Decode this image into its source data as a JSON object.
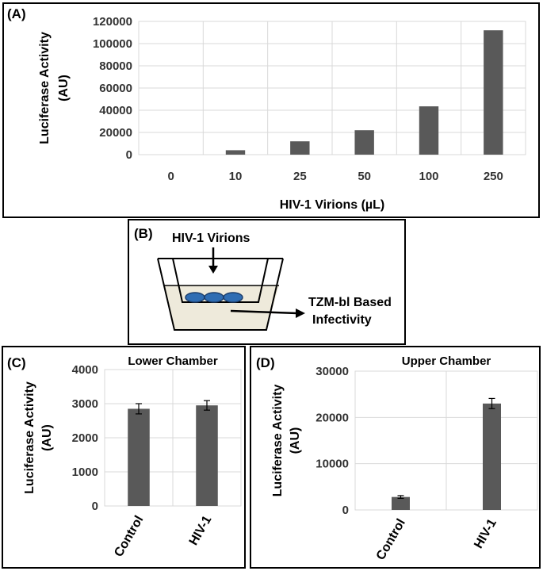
{
  "chart_data": [
    {
      "panel_label": "(A)",
      "type": "bar",
      "title": "",
      "xlabel": "HIV-1 Virions (µL)",
      "ylabel": [
        "Luciferase Activity",
        "(AU)"
      ],
      "categories": [
        "0",
        "10",
        "25",
        "50",
        "100",
        "250"
      ],
      "values": [
        0,
        4000,
        12000,
        22000,
        43500,
        112000
      ],
      "ylim": [
        0,
        120000
      ],
      "yticks": [
        "0",
        "20000",
        "40000",
        "60000",
        "80000",
        "100000",
        "120000"
      ],
      "color": "#595959",
      "grid": true,
      "legend": "none"
    },
    {
      "panel_label": "(C)",
      "type": "bar",
      "title": "Lower Chamber",
      "xlabel": "",
      "ylabel": [
        "Luciferase Activity",
        "(AU)"
      ],
      "categories": [
        "Control",
        "HIV-1"
      ],
      "values": [
        2850,
        2950
      ],
      "errors": [
        150,
        140
      ],
      "ylim": [
        0,
        4000
      ],
      "yticks": [
        "0",
        "1000",
        "2000",
        "3000",
        "4000"
      ],
      "color": "#595959",
      "grid": true,
      "legend": "none"
    },
    {
      "panel_label": "(D)",
      "type": "bar",
      "title": "Upper Chamber",
      "xlabel": "",
      "ylabel": [
        "Luciferase Activity",
        "(AU)"
      ],
      "categories": [
        "Control",
        "HIV-1"
      ],
      "values": [
        2800,
        23000
      ],
      "errors": [
        300,
        1100
      ],
      "ylim": [
        0,
        30000
      ],
      "yticks": [
        "0",
        "10000",
        "20000",
        "30000"
      ],
      "color": "#595959",
      "grid": true,
      "legend": "none"
    }
  ],
  "diagram": {
    "panel_label": "(B)",
    "input_label": "HIV-1 Virions",
    "output_label_line1": "TZM-bl Based",
    "output_label_line2": "Infectivity",
    "cell_color": "#2f6db3",
    "medium_color": "#eeeadb"
  }
}
